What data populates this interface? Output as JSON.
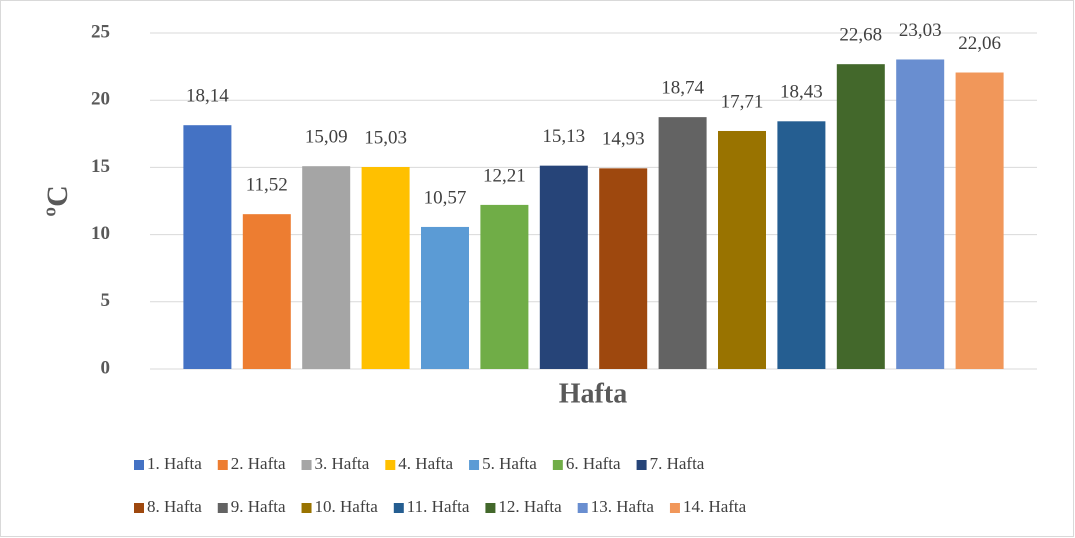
{
  "chart_data": {
    "type": "bar",
    "x_label": "Hafta",
    "y_label": "ºC",
    "categories": [
      null
    ],
    "series": [
      {
        "name": "1. Hafta",
        "color": "#4472c4",
        "values": [
          18.14
        ],
        "value_labels": [
          "18,14"
        ]
      },
      {
        "name": "2. Hafta",
        "color": "#ed7d31",
        "values": [
          11.52
        ],
        "value_labels": [
          "11,52"
        ]
      },
      {
        "name": "3. Hafta",
        "color": "#a5a5a5",
        "values": [
          15.09
        ],
        "value_labels": [
          "15,09"
        ]
      },
      {
        "name": "4. Hafta",
        "color": "#ffc000",
        "values": [
          15.03
        ],
        "value_labels": [
          "15,03"
        ]
      },
      {
        "name": "5. Hafta",
        "color": "#5b9bd5",
        "values": [
          10.57
        ],
        "value_labels": [
          "10,57"
        ]
      },
      {
        "name": "6. Hafta",
        "color": "#70ad47",
        "values": [
          12.21
        ],
        "value_labels": [
          "12,21"
        ]
      },
      {
        "name": "7. Hafta",
        "color": "#264478",
        "values": [
          15.13
        ],
        "value_labels": [
          "15,13"
        ]
      },
      {
        "name": "8. Hafta",
        "color": "#9e480e",
        "values": [
          14.93
        ],
        "value_labels": [
          "14,93"
        ]
      },
      {
        "name": "9. Hafta",
        "color": "#636363",
        "values": [
          18.74
        ],
        "value_labels": [
          "18,74"
        ]
      },
      {
        "name": "10. Hafta",
        "color": "#997300",
        "values": [
          17.71
        ],
        "value_labels": [
          "17,71"
        ]
      },
      {
        "name": "11. Hafta",
        "color": "#255e91",
        "values": [
          18.43
        ],
        "value_labels": [
          "18,43"
        ]
      },
      {
        "name": "12. Hafta",
        "color": "#43682b",
        "values": [
          22.68
        ],
        "value_labels": [
          "22,68"
        ]
      },
      {
        "name": "13. Hafta",
        "color": "#698ed0",
        "values": [
          23.03
        ],
        "value_labels": [
          "23,03"
        ]
      },
      {
        "name": "14. Hafta",
        "color": "#f1975a",
        "values": [
          22.06
        ],
        "value_labels": [
          "22,06"
        ]
      }
    ],
    "ylim": [
      0,
      25
    ],
    "yticks": [
      0,
      5,
      10,
      15,
      20,
      25
    ],
    "grid": true,
    "legend": "bottom"
  }
}
